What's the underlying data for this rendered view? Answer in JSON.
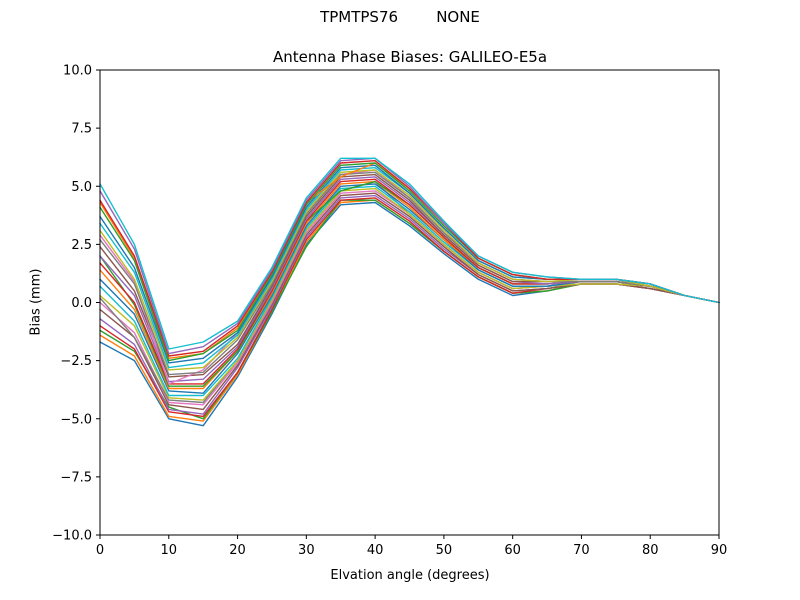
{
  "chart_data": {
    "type": "line",
    "suptitle": "TPMTPS76        NONE",
    "title": "Antenna Phase Biases: GALILEO-E5a",
    "xlabel": "Elvation angle (degrees)",
    "ylabel": "Bias (mm)",
    "xlim": [
      0,
      90
    ],
    "ylim": [
      -10,
      10
    ],
    "grid": false,
    "legend": "none",
    "xticks": [
      0,
      10,
      20,
      30,
      40,
      50,
      60,
      70,
      80,
      90
    ],
    "xtick_labels": [
      "0",
      "10",
      "20",
      "30",
      "40",
      "50",
      "60",
      "70",
      "80",
      "90"
    ],
    "yticks": [
      10.0,
      7.5,
      5.0,
      2.5,
      0.0,
      -2.5,
      -5.0,
      -7.5,
      -10.0
    ],
    "ytick_labels": [
      "10.0",
      "7.5",
      "5.0",
      "2.5",
      "0.0",
      "−2.5",
      "−5.0",
      "−7.5",
      "−10.0"
    ],
    "x": [
      0,
      5,
      10,
      15,
      20,
      25,
      30,
      35,
      40,
      45,
      50,
      55,
      60,
      65,
      70,
      75,
      80,
      85,
      90
    ],
    "series": [
      {
        "name": "series-01",
        "color": "#1f77b4",
        "values": [
          -1.7,
          -2.5,
          -5.0,
          -5.3,
          -3.2,
          -0.5,
          2.5,
          4.2,
          4.3,
          3.3,
          2.1,
          1.0,
          0.3,
          0.5,
          0.8,
          0.8,
          0.6,
          0.3,
          0.0
        ]
      },
      {
        "name": "series-02",
        "color": "#ff7f0e",
        "values": [
          -1.4,
          -2.3,
          -4.9,
          -5.1,
          -3.1,
          -0.4,
          2.6,
          4.3,
          4.4,
          3.4,
          2.2,
          1.1,
          0.4,
          0.5,
          0.8,
          0.8,
          0.6,
          0.3,
          0.0
        ]
      },
      {
        "name": "series-03",
        "color": "#2ca02c",
        "values": [
          -1.2,
          -2.1,
          -4.5,
          -5.0,
          -3.0,
          -0.4,
          2.4,
          4.4,
          4.4,
          3.4,
          2.2,
          1.1,
          0.4,
          0.5,
          0.8,
          0.8,
          0.6,
          0.3,
          0.0
        ]
      },
      {
        "name": "series-04",
        "color": "#d62728",
        "values": [
          -1.0,
          -2.0,
          -4.7,
          -4.9,
          -3.0,
          -0.3,
          2.7,
          4.4,
          4.5,
          3.5,
          2.2,
          1.1,
          0.4,
          0.6,
          0.8,
          0.8,
          0.6,
          0.3,
          0.0
        ]
      },
      {
        "name": "series-05",
        "color": "#9467bd",
        "values": [
          -0.7,
          -1.8,
          -4.6,
          -4.8,
          -2.8,
          -0.2,
          2.8,
          4.5,
          4.6,
          3.6,
          2.3,
          1.2,
          0.5,
          0.6,
          0.8,
          0.8,
          0.6,
          0.3,
          0.0
        ]
      },
      {
        "name": "series-06",
        "color": "#8c564b",
        "values": [
          -0.3,
          -1.5,
          -4.4,
          -4.6,
          -2.7,
          -0.1,
          2.9,
          4.6,
          4.7,
          3.7,
          2.4,
          1.2,
          0.5,
          0.6,
          0.8,
          0.8,
          0.6,
          0.3,
          0.0
        ]
      },
      {
        "name": "series-07",
        "color": "#e377c2",
        "values": [
          0.0,
          -1.3,
          -4.3,
          -4.4,
          -2.6,
          0.0,
          3.0,
          4.7,
          4.8,
          3.8,
          2.5,
          1.3,
          0.6,
          0.7,
          0.8,
          0.8,
          0.7,
          0.3,
          0.0
        ]
      },
      {
        "name": "series-08",
        "color": "#7f7f7f",
        "values": [
          0.2,
          -1.5,
          -4.2,
          -4.3,
          -2.5,
          0.1,
          3.1,
          4.8,
          5.2,
          3.8,
          2.5,
          1.3,
          0.6,
          0.7,
          0.8,
          0.8,
          0.7,
          0.3,
          0.0
        ]
      },
      {
        "name": "series-09",
        "color": "#bcbd22",
        "values": [
          0.3,
          -1.0,
          -4.1,
          -4.2,
          -2.5,
          0.1,
          3.1,
          4.8,
          4.9,
          3.8,
          2.5,
          1.3,
          0.6,
          0.7,
          0.8,
          0.8,
          0.7,
          0.3,
          0.0
        ]
      },
      {
        "name": "series-10",
        "color": "#17becf",
        "values": [
          0.7,
          -0.8,
          -4.0,
          -4.0,
          -2.4,
          0.2,
          3.2,
          4.9,
          5.0,
          3.9,
          2.6,
          1.4,
          0.7,
          0.7,
          0.9,
          0.9,
          0.7,
          0.3,
          0.0
        ]
      },
      {
        "name": "series-11",
        "color": "#1f77b4",
        "values": [
          1.0,
          -0.5,
          -3.8,
          -3.9,
          -2.2,
          0.3,
          3.3,
          5.0,
          5.1,
          4.0,
          2.7,
          1.4,
          0.7,
          0.7,
          0.9,
          0.9,
          0.7,
          0.3,
          0.0
        ]
      },
      {
        "name": "series-12",
        "color": "#ff7f0e",
        "values": [
          1.4,
          -0.3,
          -3.7,
          -3.7,
          -2.1,
          0.4,
          3.4,
          5.1,
          5.2,
          4.1,
          2.7,
          1.5,
          0.8,
          0.8,
          0.9,
          0.9,
          0.7,
          0.3,
          0.0
        ]
      },
      {
        "name": "series-13",
        "color": "#2ca02c",
        "values": [
          2.0,
          -0.1,
          -3.6,
          -3.6,
          -2.1,
          0.5,
          3.5,
          4.8,
          5.2,
          4.2,
          2.8,
          1.5,
          0.8,
          0.8,
          0.9,
          0.9,
          0.7,
          0.3,
          0.0
        ]
      },
      {
        "name": "series-14",
        "color": "#d62728",
        "values": [
          1.7,
          0.0,
          -3.5,
          -3.5,
          -2.0,
          0.5,
          3.5,
          5.2,
          5.3,
          4.2,
          2.8,
          1.5,
          0.8,
          0.8,
          0.9,
          0.9,
          0.7,
          0.3,
          0.0
        ]
      },
      {
        "name": "series-15",
        "color": "#9467bd",
        "values": [
          2.0,
          0.3,
          -3.4,
          -3.3,
          -1.9,
          0.6,
          3.6,
          5.3,
          5.4,
          4.3,
          2.9,
          1.6,
          0.9,
          0.8,
          0.9,
          0.9,
          0.7,
          0.3,
          0.0
        ]
      },
      {
        "name": "series-16",
        "color": "#8c564b",
        "values": [
          2.4,
          0.5,
          -3.2,
          -3.1,
          -1.8,
          0.7,
          3.7,
          5.4,
          5.5,
          4.4,
          2.9,
          1.6,
          0.9,
          0.9,
          0.9,
          0.9,
          0.7,
          0.3,
          0.0
        ]
      },
      {
        "name": "series-17",
        "color": "#e377c2",
        "values": [
          2.9,
          0.9,
          -3.5,
          -2.9,
          -1.3,
          0.9,
          3.9,
          5.5,
          5.7,
          4.5,
          3.0,
          1.7,
          1.0,
          0.9,
          1.0,
          1.0,
          0.7,
          0.3,
          0.0
        ]
      },
      {
        "name": "series-18",
        "color": "#7f7f7f",
        "values": [
          2.7,
          0.8,
          -3.1,
          -3.0,
          -1.6,
          0.8,
          3.8,
          5.5,
          5.6,
          4.5,
          3.0,
          1.7,
          1.0,
          0.9,
          0.9,
          0.9,
          0.7,
          0.3,
          0.0
        ]
      },
      {
        "name": "series-19",
        "color": "#bcbd22",
        "values": [
          3.1,
          1.0,
          -2.9,
          -2.8,
          -1.5,
          0.9,
          3.9,
          5.6,
          5.7,
          4.6,
          3.1,
          1.7,
          1.0,
          0.9,
          1.0,
          1.0,
          0.7,
          0.3,
          0.0
        ]
      },
      {
        "name": "series-20",
        "color": "#17becf",
        "values": [
          3.4,
          1.3,
          -2.8,
          -2.6,
          -1.4,
          1.0,
          4.0,
          5.7,
          5.8,
          4.7,
          3.2,
          1.8,
          1.1,
          1.0,
          1.0,
          1.0,
          0.8,
          0.3,
          0.0
        ]
      },
      {
        "name": "series-21",
        "color": "#1f77b4",
        "values": [
          3.7,
          1.5,
          -2.6,
          -2.4,
          -1.3,
          1.1,
          4.1,
          5.8,
          5.9,
          4.7,
          3.2,
          1.8,
          1.1,
          1.0,
          1.0,
          1.0,
          0.8,
          0.3,
          0.0
        ]
      },
      {
        "name": "series-22",
        "color": "#ff7f0e",
        "values": [
          4.3,
          1.9,
          -2.4,
          -2.2,
          -1.1,
          1.3,
          4.3,
          5.4,
          6.0,
          4.9,
          3.5,
          1.9,
          1.2,
          1.0,
          1.0,
          1.0,
          0.8,
          0.3,
          0.0
        ]
      },
      {
        "name": "series-23",
        "color": "#2ca02c",
        "values": [
          4.1,
          1.8,
          -2.5,
          -2.2,
          -1.2,
          1.2,
          4.2,
          5.9,
          6.0,
          4.8,
          3.3,
          1.9,
          1.2,
          1.0,
          1.0,
          1.0,
          0.8,
          0.3,
          0.0
        ]
      },
      {
        "name": "series-24",
        "color": "#d62728",
        "values": [
          4.4,
          2.0,
          -2.3,
          -2.1,
          -1.0,
          1.3,
          4.3,
          6.0,
          6.1,
          4.9,
          3.4,
          1.9,
          1.2,
          1.0,
          1.0,
          1.0,
          0.8,
          0.3,
          0.0
        ]
      },
      {
        "name": "series-25",
        "color": "#9467bd",
        "values": [
          4.8,
          2.3,
          -2.2,
          -1.9,
          -0.9,
          1.4,
          4.4,
          6.1,
          6.2,
          5.0,
          3.4,
          2.0,
          1.3,
          1.1,
          1.0,
          1.0,
          0.8,
          0.3,
          0.0
        ]
      },
      {
        "name": "series-26",
        "color": "#17becf",
        "values": [
          5.1,
          2.5,
          -2.0,
          -1.7,
          -0.8,
          1.5,
          4.5,
          6.2,
          6.2,
          5.1,
          3.5,
          2.0,
          1.3,
          1.1,
          1.0,
          1.0,
          0.8,
          0.3,
          0.0
        ]
      }
    ],
    "colors": {
      "axis": "#000000",
      "background": "#ffffff"
    }
  }
}
